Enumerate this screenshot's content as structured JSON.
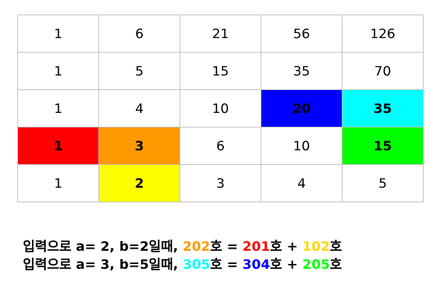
{
  "table": {
    "rows": [
      [
        {
          "v": "1"
        },
        {
          "v": "6"
        },
        {
          "v": "21"
        },
        {
          "v": "56"
        },
        {
          "v": "126"
        }
      ],
      [
        {
          "v": "1"
        },
        {
          "v": "5"
        },
        {
          "v": "15"
        },
        {
          "v": "35"
        },
        {
          "v": "70"
        }
      ],
      [
        {
          "v": "1"
        },
        {
          "v": "4"
        },
        {
          "v": "10"
        },
        {
          "v": "20",
          "bg": "#0000ff",
          "bold": true
        },
        {
          "v": "35",
          "bg": "#00ffff",
          "bold": true
        }
      ],
      [
        {
          "v": "1",
          "bg": "#ff0000",
          "bold": true
        },
        {
          "v": "3",
          "bg": "#ff9900",
          "bold": true
        },
        {
          "v": "6"
        },
        {
          "v": "10"
        },
        {
          "v": "15",
          "bg": "#00ff00",
          "bold": true
        }
      ],
      [
        {
          "v": "1"
        },
        {
          "v": "2",
          "bg": "#ffff00",
          "bold": true
        },
        {
          "v": "3"
        },
        {
          "v": "4"
        },
        {
          "v": "5"
        }
      ]
    ]
  },
  "caption": {
    "line1": {
      "prefix": "입력으로 a= 2, b=2일때, ",
      "n1": "202",
      "n1_color": "#ff9900",
      "mid1": "호 = ",
      "n2": "201",
      "n2_color": "#ff0000",
      "mid2": "호 + ",
      "n3": "102",
      "n3_color": "#ffd700",
      "suffix": "호"
    },
    "line2": {
      "prefix": "입력으로 a= 3, b=5일때, ",
      "n1": "305",
      "n1_color": "#00ffff",
      "mid1": "호 = ",
      "n2": "304",
      "n2_color": "#0000ff",
      "mid2": "호 + ",
      "n3": "205",
      "n3_color": "#00ff00",
      "suffix": "호"
    }
  }
}
